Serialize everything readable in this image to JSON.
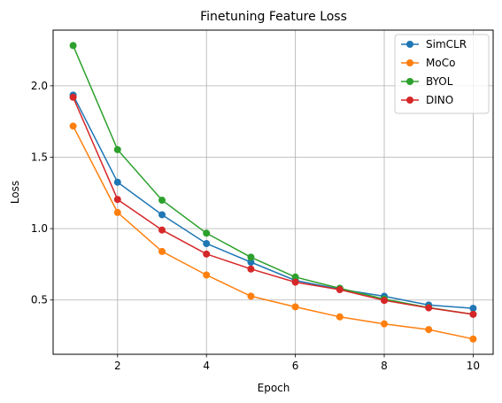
{
  "chart_data": {
    "type": "line",
    "title": "Finetuning Feature Loss",
    "xlabel": "Epoch",
    "ylabel": "Loss",
    "x": [
      1,
      2,
      3,
      4,
      5,
      6,
      7,
      8,
      9,
      10
    ],
    "xlim": [
      0.55,
      10.45
    ],
    "ylim": [
      0.12,
      2.39
    ],
    "xticks": [
      2,
      4,
      6,
      8,
      10
    ],
    "xtick_labels": [
      "2",
      "4",
      "6",
      "8",
      "10"
    ],
    "yticks": [
      0.5,
      1.0,
      1.5,
      2.0
    ],
    "ytick_labels": [
      "0.5",
      "1.0",
      "1.5",
      "2.0"
    ],
    "grid": true,
    "legend_position": "top-right",
    "series": [
      {
        "name": "SimCLR",
        "color": "#1f77b4",
        "values": [
          1.935,
          1.325,
          1.097,
          0.895,
          0.765,
          0.637,
          0.576,
          0.526,
          0.465,
          0.442
        ]
      },
      {
        "name": "MoCo",
        "color": "#ff7f0e",
        "values": [
          1.718,
          1.113,
          0.84,
          0.675,
          0.527,
          0.452,
          0.382,
          0.333,
          0.293,
          0.227
        ]
      },
      {
        "name": "BYOL",
        "color": "#2ca02c",
        "values": [
          2.282,
          1.553,
          1.199,
          0.968,
          0.8,
          0.661,
          0.582,
          0.507,
          0.447,
          0.4
        ]
      },
      {
        "name": "DINO",
        "color": "#d62728",
        "values": [
          1.92,
          1.204,
          0.99,
          0.822,
          0.717,
          0.625,
          0.573,
          0.497,
          0.445,
          0.4
        ]
      }
    ]
  }
}
